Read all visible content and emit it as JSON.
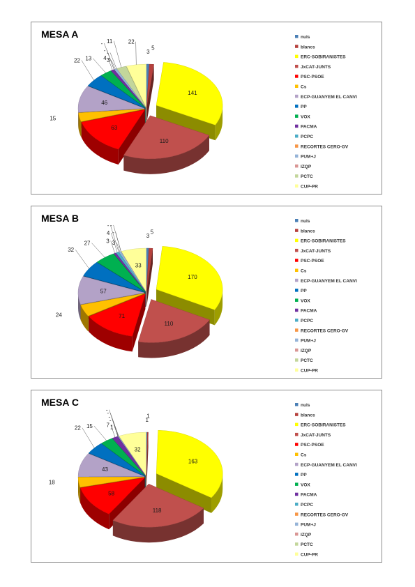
{
  "colors": {
    "nuls": "#4a7fb5",
    "blancs": "#b6413d",
    "ERC-SOBIRANISTES": "#ffff00",
    "JxCAT-JUNTS": "#c0504d",
    "PSC-PSOE": "#ff0000",
    "Cs": "#ffc000",
    "ECP-GUANYEM EL CANVI": "#b3a2c7",
    "PP": "#0070c0",
    "VOX": "#00b050",
    "PACMA": "#7030a0",
    "PCPC": "#4bacc6",
    "RECORTES CERO-GV": "#f79646",
    "PUM+J": "#95b3d7",
    "IZQP": "#d99694",
    "PCTC": "#c3d69b",
    "CUP-PR": "#ffff99"
  },
  "chart_data": [
    {
      "type": "pie",
      "title": "MESA A",
      "categories": [
        "nuls",
        "blancs",
        "ERC-SOBIRANISTES",
        "JxCAT-JUNTS",
        "PSC-PSOE",
        "Cs",
        "ECP-GUANYEM EL CANVI",
        "PP",
        "VOX",
        "PACMA",
        "PCPC",
        "RECORTES CERO-GV",
        "PUM+J",
        "IZQP",
        "PCTC",
        "CUP-PR"
      ],
      "values": [
        3,
        5,
        141,
        110,
        63,
        15,
        46,
        22,
        13,
        4,
        0,
        0,
        3,
        0,
        11,
        22
      ],
      "labels": [
        "3",
        "5",
        "141",
        "110",
        "63",
        "15",
        "46",
        "22",
        "13",
        "4",
        "-",
        "-",
        "3",
        "-",
        "11",
        "22"
      ],
      "legend_position": "right"
    },
    {
      "type": "pie",
      "title": "MESA B",
      "categories": [
        "nuls",
        "blancs",
        "ERC-SOBIRANISTES",
        "JxCAT-JUNTS",
        "PSC-PSOE",
        "Cs",
        "ECP-GUANYEM EL CANVI",
        "PP",
        "VOX",
        "PACMA",
        "PCPC",
        "RECORTES CERO-GV",
        "PUM+J",
        "IZQP",
        "PCTC",
        "CUP-PR"
      ],
      "values": [
        3,
        5,
        170,
        110,
        71,
        24,
        57,
        32,
        27,
        3,
        4,
        0,
        3,
        0,
        0,
        33
      ],
      "labels": [
        "3",
        "5",
        "170",
        "110",
        "71",
        "24",
        "57",
        "32",
        "27",
        "3",
        "4",
        "-",
        "3",
        "-",
        "-",
        "33"
      ],
      "legend_position": "right"
    },
    {
      "type": "pie",
      "title": "MESA C",
      "categories": [
        "nuls",
        "blancs",
        "ERC-SOBIRANISTES",
        "JxCAT-JUNTS",
        "PSC-PSOE",
        "Cs",
        "ECP-GUANYEM EL CANVI",
        "PP",
        "VOX",
        "PACMA",
        "PCPC",
        "RECORTES CERO-GV",
        "PUM+J",
        "IZQP",
        "PCTC",
        "CUP-PR"
      ],
      "values": [
        1,
        1,
        163,
        118,
        58,
        18,
        43,
        22,
        15,
        7,
        0,
        0,
        1,
        0,
        0,
        32
      ],
      "labels": [
        "1",
        "1",
        "163",
        "118",
        "58",
        "18",
        "43",
        "22",
        "15",
        "7",
        "-",
        "-",
        "1",
        "-",
        "-",
        "32"
      ],
      "legend_position": "right"
    }
  ]
}
